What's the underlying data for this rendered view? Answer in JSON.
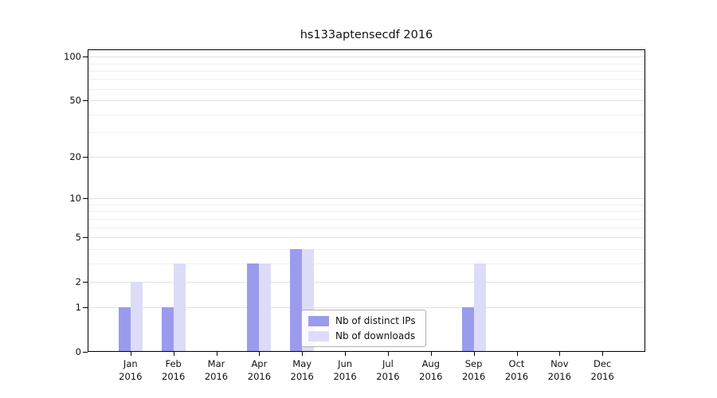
{
  "chart_data": {
    "type": "bar",
    "title": "hs133aptensecdf 2016",
    "categories": [
      "Jan",
      "Feb",
      "Mar",
      "Apr",
      "May",
      "Jun",
      "Jul",
      "Aug",
      "Sep",
      "Oct",
      "Nov",
      "Dec"
    ],
    "year_label": "2016",
    "series": [
      {
        "name": "Nb of distinct IPs",
        "color": "#9b9bee",
        "values": [
          1,
          1,
          0,
          3,
          4,
          0,
          0,
          0,
          1,
          0,
          0,
          0
        ]
      },
      {
        "name": "Nb of downloads",
        "color": "#dcdcf8",
        "values": [
          2,
          3,
          0,
          3,
          4,
          0,
          0,
          0,
          3,
          0,
          0,
          0
        ]
      }
    ],
    "yscale": "log1p",
    "ylim": [
      0,
      100
    ],
    "y_ticks": [
      0,
      1,
      2,
      5,
      10,
      20,
      50,
      100
    ],
    "y_minor_ticks": [
      3,
      4,
      6,
      7,
      8,
      9,
      30,
      40,
      60,
      70,
      80,
      90
    ],
    "grid": "horizontal",
    "legend_position": "lower center",
    "colors": {
      "grid_major": "#e2e2e2",
      "grid_minor": "#f0f0f0",
      "axis": "#000000",
      "text": "#111111"
    }
  }
}
